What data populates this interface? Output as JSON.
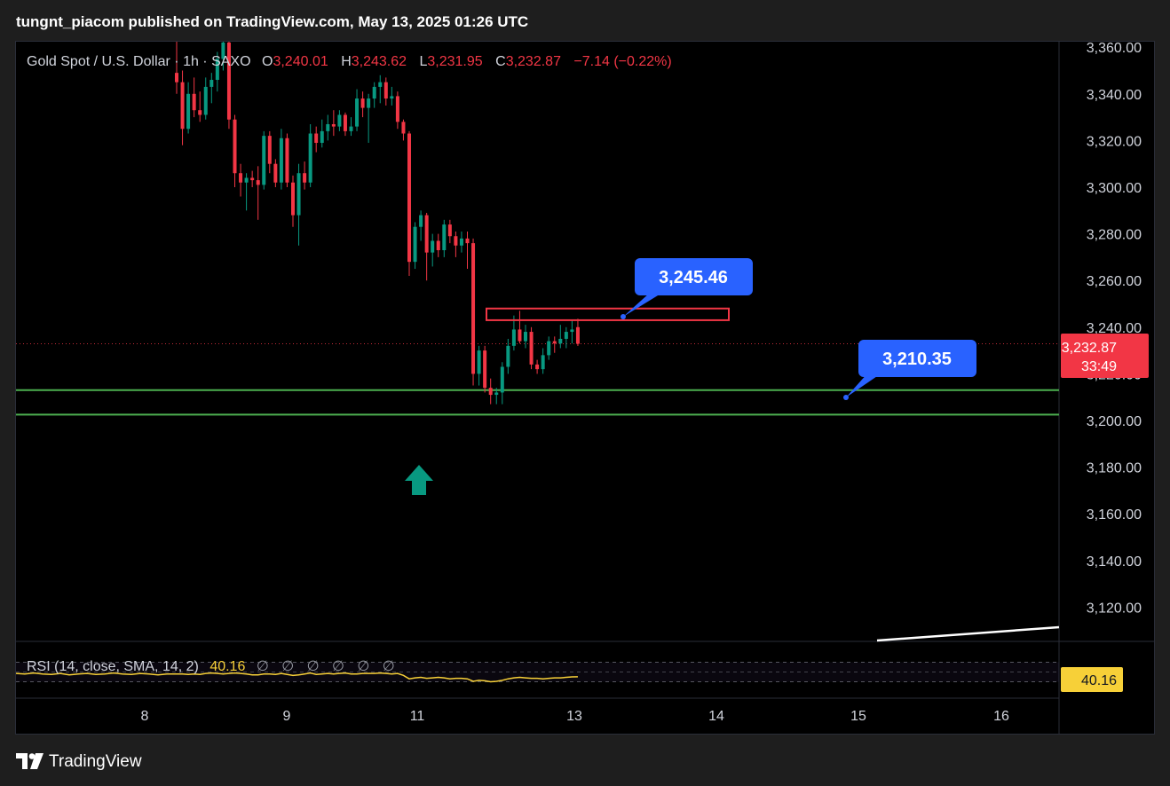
{
  "header": {
    "publisher_text": "tungnt_piacom published on TradingView.com, May 13, 2025 01:26 UTC"
  },
  "legend": {
    "symbol": "Gold Spot / U.S. Dollar · 1h · SAXO",
    "o_label": "O",
    "o_value": "3,240.01",
    "h_label": "H",
    "h_value": "3,243.62",
    "l_label": "L",
    "l_value": "3,231.95",
    "c_label": "C",
    "c_value": "3,232.87",
    "change": "−7.14 (−0.22%)"
  },
  "rsi_legend": {
    "label": "RSI (14, close, SMA, 14, 2)",
    "value": "40.16",
    "nulls": [
      "∅",
      "∅",
      "∅",
      "∅",
      "∅",
      "∅"
    ]
  },
  "price_badge": {
    "value": "3,232.87",
    "countdown": "33:49"
  },
  "rsi_badge": {
    "value": "40.16"
  },
  "footer": {
    "brand": "TradingView"
  },
  "colors": {
    "up": "#089981",
    "down": "#f23645",
    "support": "#4caf50",
    "callout": "#2962ff",
    "rsi": "#f7d038",
    "arrow": "#089981"
  },
  "icons": {
    "brand_logo": "tradingview-logo",
    "signal": "up-arrow-icon"
  },
  "chart_data": {
    "type": "candlestick",
    "symbol": "XAUUSD",
    "timeframe": "1h",
    "y_ticks": [
      3120,
      3140,
      3160,
      3180,
      3200,
      3220,
      3240,
      3260,
      3280,
      3300,
      3320,
      3340,
      3360
    ],
    "y_tick_labels": [
      "3,120.00",
      "3,140.00",
      "3,160.00",
      "3,180.00",
      "3,200.00",
      "3,220.00",
      "3,240.00",
      "3,260.00",
      "3,280.00",
      "3,300.00",
      "3,320.00",
      "3,340.00",
      "3,360.00"
    ],
    "x_tick_labels": [
      "8",
      "9",
      "11",
      "13",
      "14",
      "15",
      "16"
    ],
    "last_price": 3232.87,
    "candles": [
      {
        "o": 3349,
        "h": 3365,
        "l": 3340,
        "c": 3345
      },
      {
        "o": 3345,
        "h": 3350,
        "l": 3318,
        "c": 3325
      },
      {
        "o": 3325,
        "h": 3345,
        "l": 3323,
        "c": 3340
      },
      {
        "o": 3340,
        "h": 3347,
        "l": 3330,
        "c": 3333
      },
      {
        "o": 3333,
        "h": 3341,
        "l": 3328,
        "c": 3331
      },
      {
        "o": 3331,
        "h": 3347,
        "l": 3329,
        "c": 3343
      },
      {
        "o": 3343,
        "h": 3349,
        "l": 3336,
        "c": 3346
      },
      {
        "o": 3346,
        "h": 3358,
        "l": 3341,
        "c": 3355
      },
      {
        "o": 3355,
        "h": 3366,
        "l": 3350,
        "c": 3362
      },
      {
        "o": 3362,
        "h": 3365,
        "l": 3325,
        "c": 3329
      },
      {
        "o": 3329,
        "h": 3331,
        "l": 3300,
        "c": 3306
      },
      {
        "o": 3306,
        "h": 3310,
        "l": 3296,
        "c": 3302
      },
      {
        "o": 3302,
        "h": 3306,
        "l": 3290,
        "c": 3304
      },
      {
        "o": 3304,
        "h": 3307,
        "l": 3300,
        "c": 3303
      },
      {
        "o": 3303,
        "h": 3309,
        "l": 3286,
        "c": 3301
      },
      {
        "o": 3301,
        "h": 3324,
        "l": 3299,
        "c": 3322
      },
      {
        "o": 3322,
        "h": 3324,
        "l": 3306,
        "c": 3310
      },
      {
        "o": 3310,
        "h": 3312,
        "l": 3300,
        "c": 3302
      },
      {
        "o": 3302,
        "h": 3325,
        "l": 3299,
        "c": 3321
      },
      {
        "o": 3321,
        "h": 3323,
        "l": 3300,
        "c": 3302
      },
      {
        "o": 3302,
        "h": 3305,
        "l": 3283,
        "c": 3288
      },
      {
        "o": 3288,
        "h": 3310,
        "l": 3275,
        "c": 3306
      },
      {
        "o": 3306,
        "h": 3311,
        "l": 3299,
        "c": 3302
      },
      {
        "o": 3302,
        "h": 3327,
        "l": 3300,
        "c": 3323
      },
      {
        "o": 3323,
        "h": 3326,
        "l": 3315,
        "c": 3319
      },
      {
        "o": 3319,
        "h": 3329,
        "l": 3317,
        "c": 3324
      },
      {
        "o": 3324,
        "h": 3331,
        "l": 3320,
        "c": 3327
      },
      {
        "o": 3327,
        "h": 3333,
        "l": 3322,
        "c": 3326
      },
      {
        "o": 3326,
        "h": 3333,
        "l": 3324,
        "c": 3331
      },
      {
        "o": 3331,
        "h": 3332,
        "l": 3322,
        "c": 3324
      },
      {
        "o": 3324,
        "h": 3330,
        "l": 3322,
        "c": 3326
      },
      {
        "o": 3326,
        "h": 3342,
        "l": 3324,
        "c": 3338
      },
      {
        "o": 3338,
        "h": 3341,
        "l": 3330,
        "c": 3334
      },
      {
        "o": 3334,
        "h": 3340,
        "l": 3319,
        "c": 3338
      },
      {
        "o": 3338,
        "h": 3345,
        "l": 3334,
        "c": 3343
      },
      {
        "o": 3343,
        "h": 3348,
        "l": 3336,
        "c": 3345
      },
      {
        "o": 3345,
        "h": 3347,
        "l": 3335,
        "c": 3338
      },
      {
        "o": 3338,
        "h": 3343,
        "l": 3335,
        "c": 3339
      },
      {
        "o": 3339,
        "h": 3341,
        "l": 3325,
        "c": 3328
      },
      {
        "o": 3328,
        "h": 3329,
        "l": 3320,
        "c": 3323
      },
      {
        "o": 3323,
        "h": 3324,
        "l": 3262,
        "c": 3268
      },
      {
        "o": 3268,
        "h": 3285,
        "l": 3265,
        "c": 3283
      },
      {
        "o": 3283,
        "h": 3290,
        "l": 3277,
        "c": 3288
      },
      {
        "o": 3288,
        "h": 3289,
        "l": 3260,
        "c": 3272
      },
      {
        "o": 3272,
        "h": 3280,
        "l": 3266,
        "c": 3277
      },
      {
        "o": 3277,
        "h": 3280,
        "l": 3270,
        "c": 3273
      },
      {
        "o": 3273,
        "h": 3286,
        "l": 3270,
        "c": 3284
      },
      {
        "o": 3284,
        "h": 3286,
        "l": 3276,
        "c": 3279
      },
      {
        "o": 3279,
        "h": 3281,
        "l": 3270,
        "c": 3275
      },
      {
        "o": 3275,
        "h": 3281,
        "l": 3272,
        "c": 3278
      },
      {
        "o": 3278,
        "h": 3281,
        "l": 3265,
        "c": 3276
      },
      {
        "o": 3276,
        "h": 3278,
        "l": 3215,
        "c": 3220
      },
      {
        "o": 3220,
        "h": 3232,
        "l": 3215,
        "c": 3230
      },
      {
        "o": 3230,
        "h": 3232,
        "l": 3212,
        "c": 3214
      },
      {
        "o": 3214,
        "h": 3218,
        "l": 3207,
        "c": 3211
      },
      {
        "o": 3211,
        "h": 3214,
        "l": 3207,
        "c": 3212
      },
      {
        "o": 3212,
        "h": 3225,
        "l": 3207,
        "c": 3223
      },
      {
        "o": 3223,
        "h": 3235,
        "l": 3220,
        "c": 3232
      },
      {
        "o": 3232,
        "h": 3245,
        "l": 3230,
        "c": 3239
      },
      {
        "o": 3239,
        "h": 3247,
        "l": 3233,
        "c": 3234
      },
      {
        "o": 3234,
        "h": 3241,
        "l": 3231,
        "c": 3238
      },
      {
        "o": 3238,
        "h": 3240,
        "l": 3222,
        "c": 3224
      },
      {
        "o": 3224,
        "h": 3226,
        "l": 3220,
        "c": 3222
      },
      {
        "o": 3222,
        "h": 3231,
        "l": 3220,
        "c": 3228
      },
      {
        "o": 3228,
        "h": 3236,
        "l": 3226,
        "c": 3234
      },
      {
        "o": 3234,
        "h": 3236,
        "l": 3229,
        "c": 3233
      },
      {
        "o": 3233,
        "h": 3241,
        "l": 3231,
        "c": 3235
      },
      {
        "o": 3235,
        "h": 3240,
        "l": 3231,
        "c": 3238
      },
      {
        "o": 3238,
        "h": 3243,
        "l": 3233,
        "c": 3239
      },
      {
        "o": 3240.01,
        "h": 3243.62,
        "l": 3231.95,
        "c": 3232.87
      }
    ],
    "horizontal_lines": [
      3213,
      3202.5
    ],
    "resistance_box": {
      "top": 3248,
      "bottom": 3243
    },
    "callouts": [
      "3,245.46",
      "3,210.35"
    ],
    "rsi": {
      "values": [
        46,
        46,
        45,
        46,
        45,
        47,
        48,
        47,
        46,
        47,
        48,
        47,
        46,
        44,
        44,
        46,
        46,
        45,
        47,
        45,
        43,
        44,
        46,
        48,
        45,
        46,
        47,
        46,
        47,
        48,
        46,
        46,
        47,
        47,
        47,
        48,
        47,
        46,
        47,
        43,
        36,
        38,
        39,
        37,
        38,
        39,
        38,
        36,
        37,
        37,
        36,
        31,
        33,
        32,
        30,
        31,
        33,
        36,
        38,
        39,
        38,
        37,
        37,
        36,
        37,
        38,
        38,
        39,
        40,
        40.16
      ],
      "upper": 70,
      "lower": 30
    }
  }
}
